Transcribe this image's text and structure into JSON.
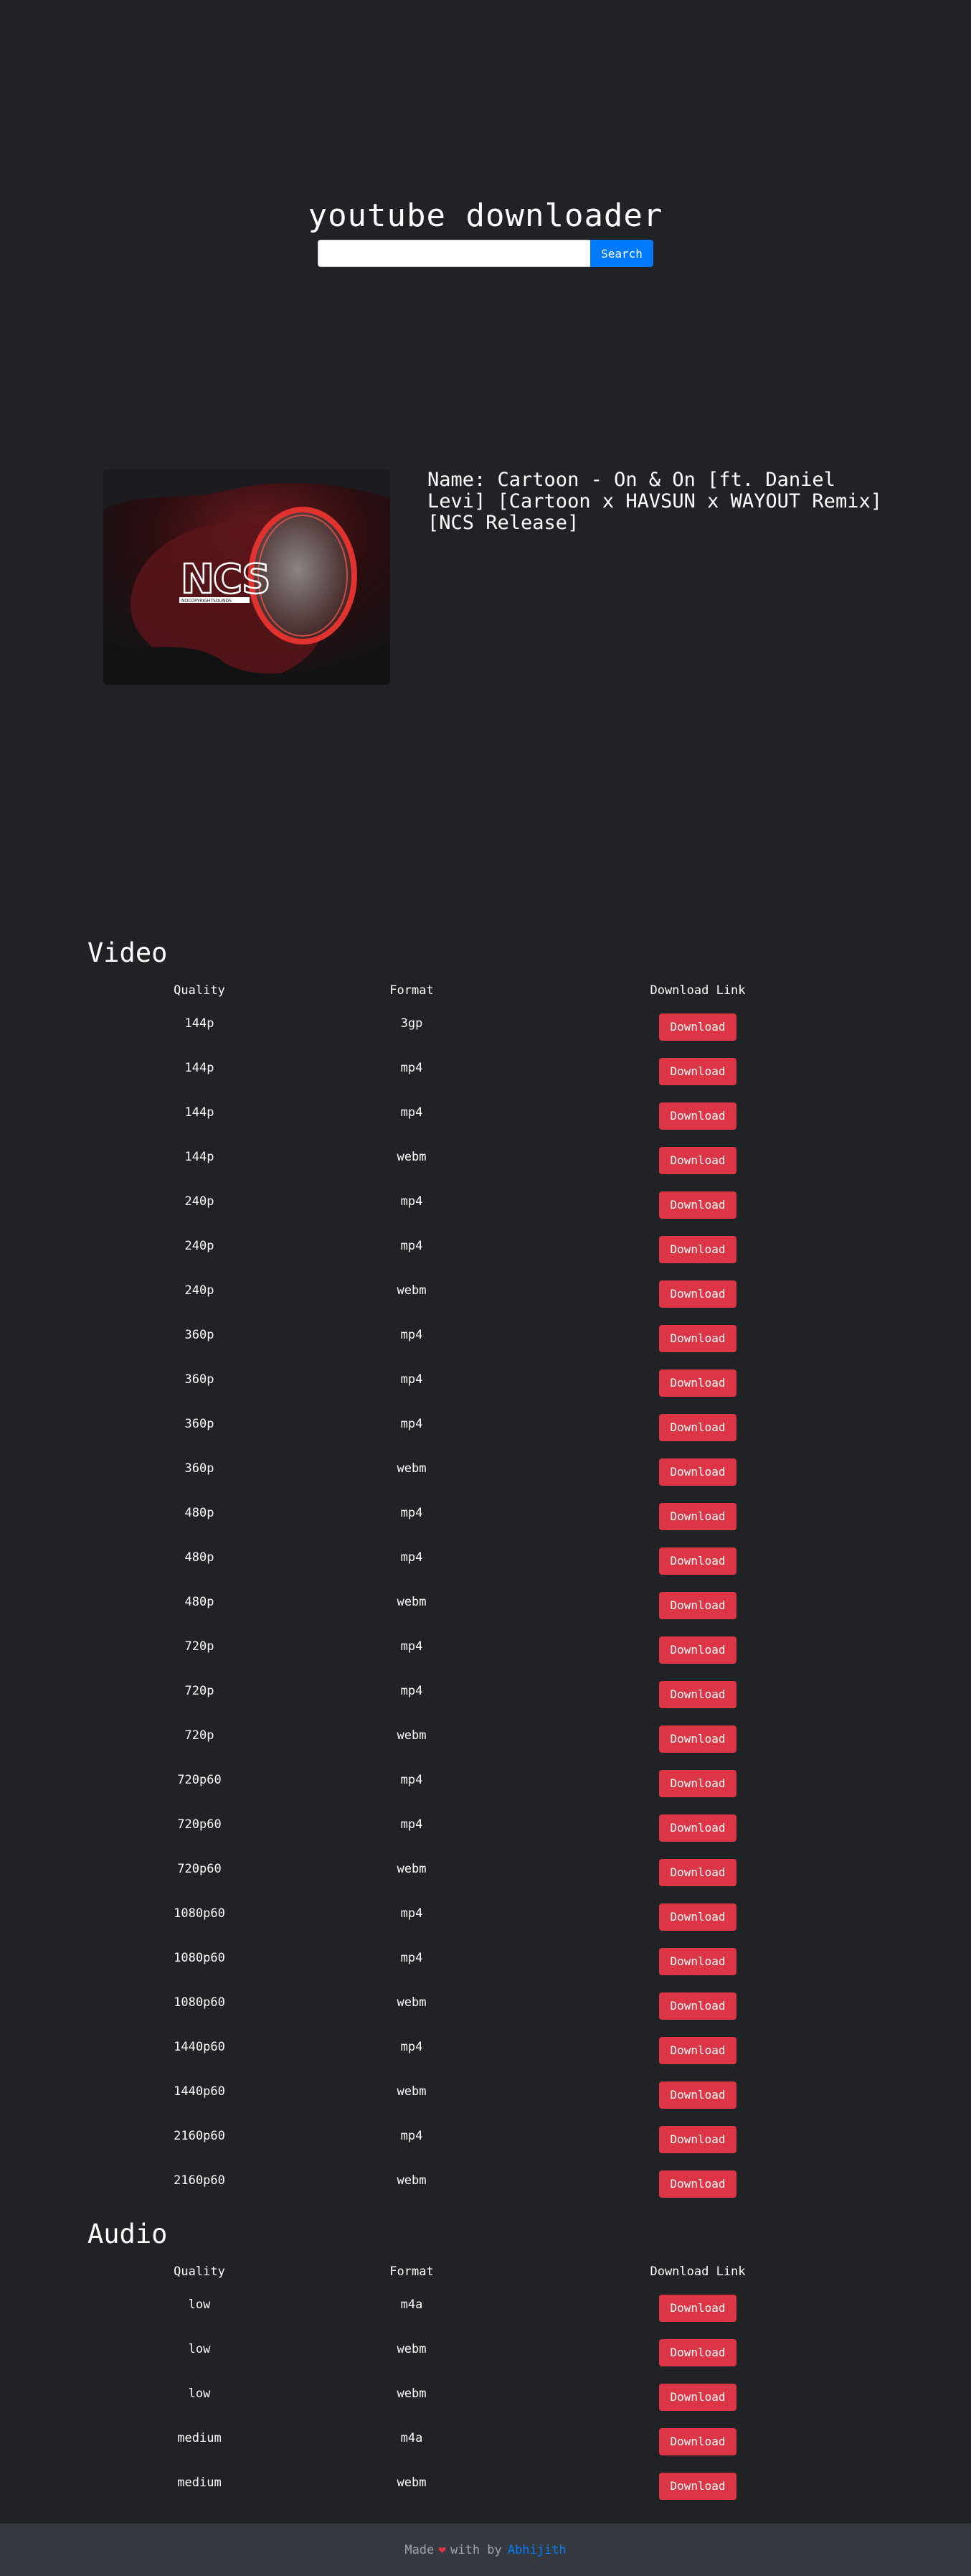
{
  "header": {
    "title": "youtube downloader",
    "search_placeholder": "",
    "search_button": "Search"
  },
  "video": {
    "name": "Name: Cartoon - On & On [ft. Daniel Levi] [Cartoon x HAVSUN x WAYOUT Remix] [NCS Release]",
    "thumbnail_logo": "NCS",
    "thumbnail_sub": "NOCOPYRIGHTSOUNDS"
  },
  "video_table": {
    "heading": "Video",
    "columns": [
      "Quality",
      "Format",
      "Download Link"
    ],
    "rows": [
      {
        "quality": "144p",
        "format": "3gp",
        "link": "Download"
      },
      {
        "quality": "144p",
        "format": "mp4",
        "link": "Download"
      },
      {
        "quality": "144p",
        "format": "mp4",
        "link": "Download"
      },
      {
        "quality": "144p",
        "format": "webm",
        "link": "Download"
      },
      {
        "quality": "240p",
        "format": "mp4",
        "link": "Download"
      },
      {
        "quality": "240p",
        "format": "mp4",
        "link": "Download"
      },
      {
        "quality": "240p",
        "format": "webm",
        "link": "Download"
      },
      {
        "quality": "360p",
        "format": "mp4",
        "link": "Download"
      },
      {
        "quality": "360p",
        "format": "mp4",
        "link": "Download"
      },
      {
        "quality": "360p",
        "format": "mp4",
        "link": "Download"
      },
      {
        "quality": "360p",
        "format": "webm",
        "link": "Download"
      },
      {
        "quality": "480p",
        "format": "mp4",
        "link": "Download"
      },
      {
        "quality": "480p",
        "format": "mp4",
        "link": "Download"
      },
      {
        "quality": "480p",
        "format": "webm",
        "link": "Download"
      },
      {
        "quality": "720p",
        "format": "mp4",
        "link": "Download"
      },
      {
        "quality": "720p",
        "format": "mp4",
        "link": "Download"
      },
      {
        "quality": "720p",
        "format": "webm",
        "link": "Download"
      },
      {
        "quality": "720p60",
        "format": "mp4",
        "link": "Download"
      },
      {
        "quality": "720p60",
        "format": "mp4",
        "link": "Download"
      },
      {
        "quality": "720p60",
        "format": "webm",
        "link": "Download"
      },
      {
        "quality": "1080p60",
        "format": "mp4",
        "link": "Download"
      },
      {
        "quality": "1080p60",
        "format": "mp4",
        "link": "Download"
      },
      {
        "quality": "1080p60",
        "format": "webm",
        "link": "Download"
      },
      {
        "quality": "1440p60",
        "format": "mp4",
        "link": "Download"
      },
      {
        "quality": "1440p60",
        "format": "webm",
        "link": "Download"
      },
      {
        "quality": "2160p60",
        "format": "mp4",
        "link": "Download"
      },
      {
        "quality": "2160p60",
        "format": "webm",
        "link": "Download"
      }
    ]
  },
  "audio_table": {
    "heading": "Audio",
    "columns": [
      "Quality",
      "Format",
      "Download Link"
    ],
    "rows": [
      {
        "quality": "low",
        "format": "m4a",
        "link": "Download"
      },
      {
        "quality": "low",
        "format": "webm",
        "link": "Download"
      },
      {
        "quality": "low",
        "format": "webm",
        "link": "Download"
      },
      {
        "quality": "medium",
        "format": "m4a",
        "link": "Download"
      },
      {
        "quality": "medium",
        "format": "webm",
        "link": "Download"
      }
    ]
  },
  "footer": {
    "made": "Made",
    "heart_icon": "heart-icon",
    "with_by": "with by",
    "author": "Abhijith"
  },
  "colors": {
    "background": "#202226",
    "primary": "#007bff",
    "danger": "#dc3545",
    "footer_bg": "#343a40"
  }
}
